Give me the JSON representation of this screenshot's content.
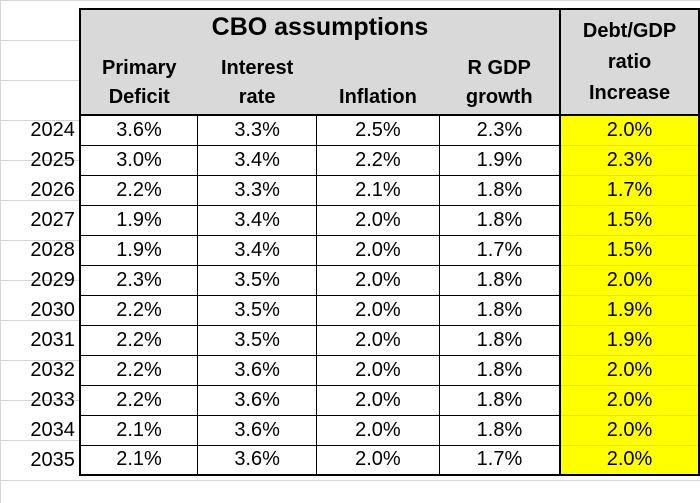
{
  "table": {
    "title": "CBO assumptions",
    "headers": {
      "primary_deficit": [
        "Primary",
        "Deficit"
      ],
      "interest_rate": [
        "Interest",
        "rate"
      ],
      "inflation": [
        "",
        "Inflation"
      ],
      "rgdp_growth": [
        "R GDP",
        "growth"
      ],
      "debt_gdp": [
        "Debt/GDP",
        "ratio",
        "Increase"
      ]
    },
    "rows": [
      {
        "year": "2024",
        "primary_deficit": "3.6%",
        "interest_rate": "3.3%",
        "inflation": "2.5%",
        "rgdp_growth": "2.3%",
        "debt_gdp": "2.0%"
      },
      {
        "year": "2025",
        "primary_deficit": "3.0%",
        "interest_rate": "3.4%",
        "inflation": "2.2%",
        "rgdp_growth": "1.9%",
        "debt_gdp": "2.3%"
      },
      {
        "year": "2026",
        "primary_deficit": "2.2%",
        "interest_rate": "3.3%",
        "inflation": "2.1%",
        "rgdp_growth": "1.8%",
        "debt_gdp": "1.7%"
      },
      {
        "year": "2027",
        "primary_deficit": "1.9%",
        "interest_rate": "3.4%",
        "inflation": "2.0%",
        "rgdp_growth": "1.8%",
        "debt_gdp": "1.5%"
      },
      {
        "year": "2028",
        "primary_deficit": "1.9%",
        "interest_rate": "3.4%",
        "inflation": "2.0%",
        "rgdp_growth": "1.7%",
        "debt_gdp": "1.5%"
      },
      {
        "year": "2029",
        "primary_deficit": "2.3%",
        "interest_rate": "3.5%",
        "inflation": "2.0%",
        "rgdp_growth": "1.8%",
        "debt_gdp": "2.0%"
      },
      {
        "year": "2030",
        "primary_deficit": "2.2%",
        "interest_rate": "3.5%",
        "inflation": "2.0%",
        "rgdp_growth": "1.8%",
        "debt_gdp": "1.9%"
      },
      {
        "year": "2031",
        "primary_deficit": "2.2%",
        "interest_rate": "3.5%",
        "inflation": "2.0%",
        "rgdp_growth": "1.8%",
        "debt_gdp": "1.9%"
      },
      {
        "year": "2032",
        "primary_deficit": "2.2%",
        "interest_rate": "3.6%",
        "inflation": "2.0%",
        "rgdp_growth": "1.8%",
        "debt_gdp": "2.0%"
      },
      {
        "year": "2033",
        "primary_deficit": "2.2%",
        "interest_rate": "3.6%",
        "inflation": "2.0%",
        "rgdp_growth": "1.8%",
        "debt_gdp": "2.0%"
      },
      {
        "year": "2034",
        "primary_deficit": "2.1%",
        "interest_rate": "3.6%",
        "inflation": "2.0%",
        "rgdp_growth": "1.8%",
        "debt_gdp": "2.0%"
      },
      {
        "year": "2035",
        "primary_deficit": "2.1%",
        "interest_rate": "3.6%",
        "inflation": "2.0%",
        "rgdp_growth": "1.7%",
        "debt_gdp": "2.0%"
      }
    ]
  },
  "colors": {
    "header_fill": "#d9d9d9",
    "highlight_fill": "#ffff00",
    "gridline": "#d4d4d4"
  }
}
